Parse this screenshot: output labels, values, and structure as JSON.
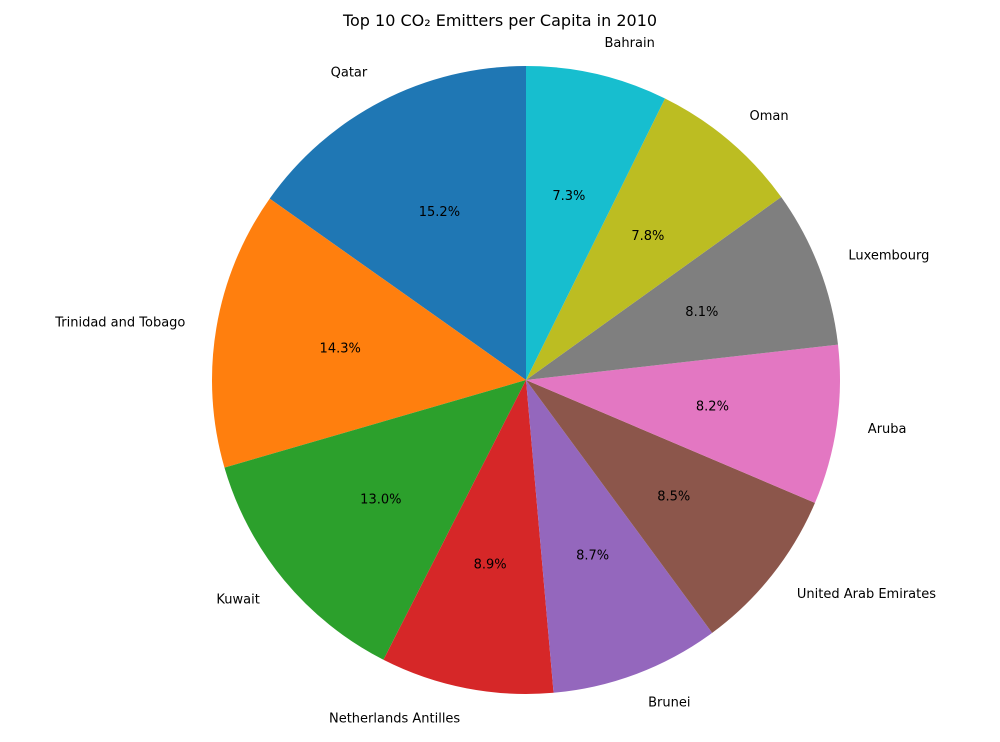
{
  "chart_data": {
    "type": "pie",
    "title": "Top 10 CO₂ Emitters per Capita in 2010",
    "categories": [
      "Qatar",
      "Trinidad and Tobago",
      "Kuwait",
      "Netherlands Antilles",
      "Brunei",
      "United Arab Emirates",
      "Aruba",
      "Luxembourg",
      "Oman",
      "Bahrain"
    ],
    "values": [
      15.2,
      14.3,
      13.0,
      8.9,
      8.7,
      8.5,
      8.2,
      8.1,
      7.8,
      7.3
    ],
    "value_labels": [
      "15.2%",
      "14.3%",
      "13.0%",
      "8.9%",
      "8.7%",
      "8.5%",
      "8.2%",
      "8.1%",
      "7.8%",
      "7.3%"
    ],
    "colors": [
      "#1f77b4",
      "#ff7f0e",
      "#2ca02c",
      "#d62728",
      "#9467bd",
      "#8c564b",
      "#e377c2",
      "#7f7f7f",
      "#bcbd22",
      "#17becf"
    ],
    "start_angle_deg": 90,
    "direction": "counterclockwise"
  }
}
